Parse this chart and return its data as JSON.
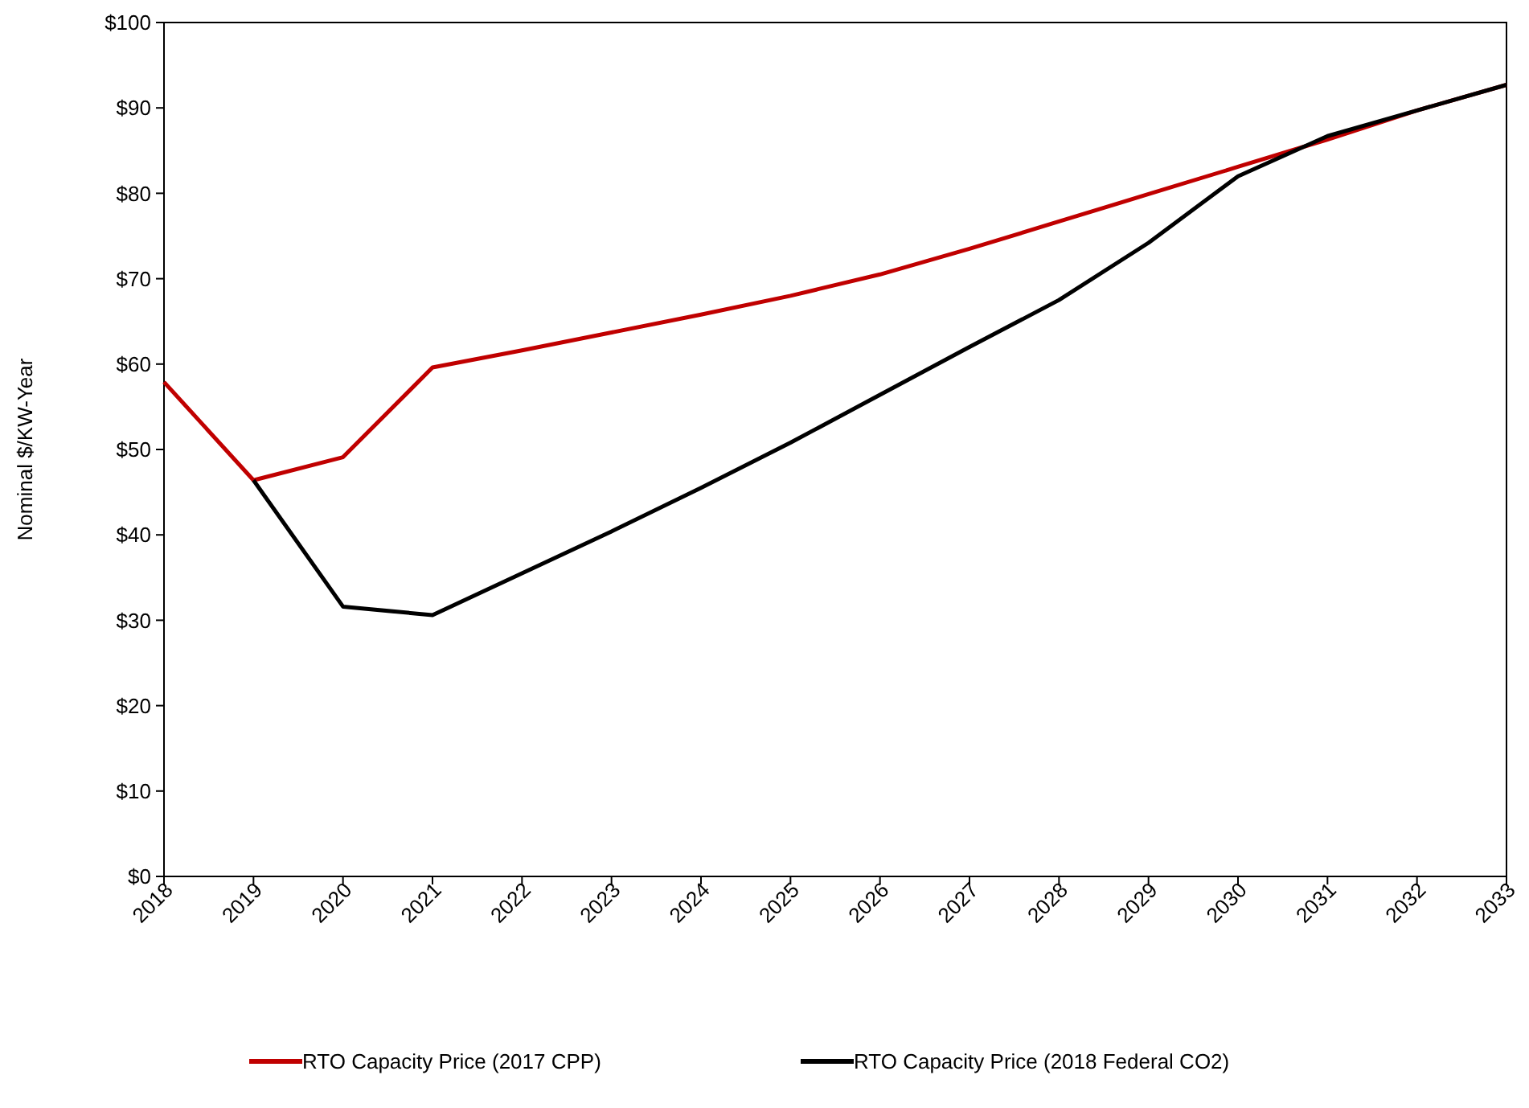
{
  "chart_data": {
    "type": "line",
    "ylabel": "Nominal $/KW-Year",
    "categories": [
      "2018",
      "2019",
      "2020",
      "2021",
      "2022",
      "2023",
      "2024",
      "2025",
      "2026",
      "2027",
      "2028",
      "2029",
      "2030",
      "2031",
      "2032",
      "2033"
    ],
    "series": [
      {
        "name": "RTO Capacity Price (2017 CPP)",
        "color": "#c00000",
        "values": [
          57.9,
          46.4,
          49.1,
          59.6,
          61.6,
          63.7,
          65.8,
          68.0,
          70.5,
          73.5,
          76.7,
          79.9,
          83.1,
          86.3,
          89.7,
          92.7
        ]
      },
      {
        "name": "RTO Capacity Price (2018 Federal CO2)",
        "color": "#000000",
        "values": [
          null,
          46.4,
          31.6,
          30.6,
          35.5,
          40.4,
          45.5,
          50.8,
          56.4,
          62.0,
          67.5,
          74.2,
          82.0,
          86.7,
          89.7,
          92.7
        ]
      }
    ],
    "ylim": [
      0,
      100
    ],
    "yticks": [
      {
        "value": 0,
        "label": "$0"
      },
      {
        "value": 10,
        "label": "$10"
      },
      {
        "value": 20,
        "label": "$20"
      },
      {
        "value": 30,
        "label": "$30"
      },
      {
        "value": 40,
        "label": "$40"
      },
      {
        "value": 50,
        "label": "$50"
      },
      {
        "value": 60,
        "label": "$60"
      },
      {
        "value": 70,
        "label": "$70"
      },
      {
        "value": 80,
        "label": "$80"
      },
      {
        "value": 90,
        "label": "$90"
      },
      {
        "value": 100,
        "label": "$100"
      }
    ],
    "legend": "bottom",
    "marker": "none",
    "line_style": "solid",
    "grid": false
  }
}
